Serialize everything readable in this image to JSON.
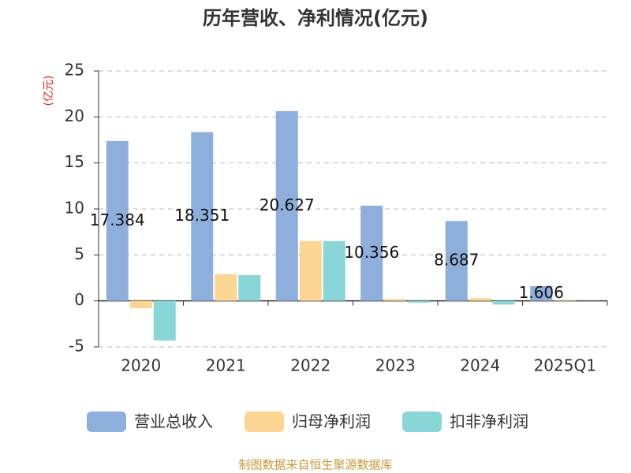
{
  "chart_data": {
    "type": "bar",
    "title": "历年营收、净利情况(亿元)",
    "y_label": "(亿元)",
    "source": "制图数据来自恒生聚源数据库",
    "categories": [
      "2020",
      "2021",
      "2022",
      "2023",
      "2024",
      "2025Q1"
    ],
    "series": [
      {
        "name": "营业总收入",
        "color": "#8eaedc",
        "values": [
          17.384,
          18.351,
          20.627,
          10.356,
          8.687,
          1.606
        ],
        "labels": true
      },
      {
        "name": "归母净利润",
        "color": "#fdd593",
        "values": [
          -0.8,
          2.9,
          6.5,
          0.2,
          0.3,
          0.05
        ]
      },
      {
        "name": "扣非净利润",
        "color": "#88d6d8",
        "values": [
          -4.3,
          2.8,
          6.5,
          -0.2,
          -0.4,
          0.02
        ]
      }
    ],
    "ylim": [
      -5,
      25
    ],
    "yticks": [
      -5,
      0,
      5,
      10,
      15,
      20,
      25
    ],
    "grid": true
  }
}
